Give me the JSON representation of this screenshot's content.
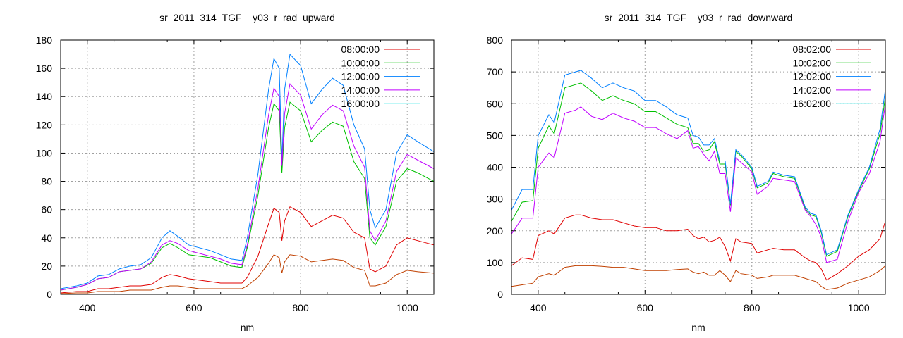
{
  "chart_data": [
    {
      "type": "line",
      "title": "sr_2011_314_TGF__y03_r_rad_upward",
      "xlabel": "nm",
      "ylabel": "",
      "xlim": [
        350,
        1050
      ],
      "ylim": [
        0,
        180
      ],
      "xticks": [
        400,
        600,
        800,
        1000
      ],
      "yticks": [
        0,
        20,
        40,
        60,
        80,
        100,
        120,
        140,
        160,
        180
      ],
      "grid": true,
      "legend_position": "top-right",
      "x": [
        350,
        380,
        400,
        420,
        440,
        460,
        480,
        500,
        520,
        540,
        555,
        570,
        590,
        610,
        630,
        650,
        670,
        690,
        700,
        720,
        740,
        750,
        760,
        765,
        770,
        780,
        800,
        820,
        840,
        860,
        880,
        900,
        920,
        930,
        940,
        960,
        980,
        1000,
        1020,
        1050
      ],
      "series": [
        {
          "name": "08:00:00",
          "color": "#e00000",
          "line_color": "#e00000",
          "values": [
            1,
            2,
            2,
            4,
            4,
            5,
            6,
            6,
            7,
            12,
            14,
            13,
            11,
            10,
            9,
            8,
            8,
            8,
            12,
            27,
            50,
            61,
            58,
            38,
            52,
            62,
            58,
            48,
            52,
            56,
            54,
            44,
            40,
            18,
            16,
            20,
            35,
            40,
            38,
            35
          ]
        },
        {
          "name": "10:00:00",
          "color": "#00c000",
          "line_color": "#00c000",
          "values": [
            3,
            5,
            7,
            11,
            12,
            16,
            17,
            18,
            22,
            33,
            36,
            33,
            28,
            27,
            26,
            23,
            20,
            19,
            33,
            70,
            118,
            135,
            130,
            86,
            118,
            136,
            130,
            108,
            116,
            122,
            119,
            94,
            82,
            40,
            35,
            48,
            80,
            89,
            86,
            80
          ]
        },
        {
          "name": "12:00:00",
          "color": "#0080ff",
          "line_color": "#0080ff",
          "values": [
            4,
            6,
            8,
            13,
            14,
            18,
            20,
            21,
            26,
            40,
            45,
            41,
            35,
            33,
            31,
            28,
            25,
            24,
            40,
            85,
            145,
            167,
            160,
            95,
            145,
            170,
            162,
            135,
            145,
            153,
            148,
            120,
            103,
            60,
            47,
            60,
            100,
            113,
            108,
            101
          ]
        },
        {
          "name": "14:00:00",
          "color": "#c000ff",
          "line_color": "#c000ff",
          "values": [
            3,
            5,
            7,
            11,
            12,
            16,
            17,
            18,
            23,
            35,
            38,
            36,
            31,
            29,
            27,
            25,
            22,
            21,
            35,
            75,
            127,
            146,
            140,
            91,
            128,
            149,
            141,
            117,
            127,
            134,
            130,
            105,
            90,
            45,
            38,
            52,
            87,
            99,
            95,
            89
          ]
        },
        {
          "name": "16:00:00",
          "color": "#00e0e0",
          "line_color": "#c04000",
          "values": [
            0.5,
            1,
            1,
            2,
            2,
            2,
            3,
            3,
            3,
            5,
            6,
            6,
            5,
            4,
            4,
            4,
            4,
            4,
            6,
            12,
            22,
            28,
            26,
            15,
            23,
            28,
            27,
            23,
            24,
            25,
            24,
            19,
            17,
            6,
            6,
            8,
            14,
            17,
            16,
            15
          ]
        }
      ]
    },
    {
      "type": "line",
      "title": "sr_2011_314_TGF__y03_r_rad_downward",
      "xlabel": "nm",
      "ylabel": "",
      "xlim": [
        350,
        1050
      ],
      "ylim": [
        0,
        800
      ],
      "xticks": [
        400,
        600,
        800,
        1000
      ],
      "yticks": [
        0,
        100,
        200,
        300,
        400,
        500,
        600,
        700,
        800
      ],
      "grid": true,
      "legend_position": "top-right",
      "x": [
        350,
        370,
        390,
        400,
        420,
        430,
        450,
        470,
        480,
        500,
        520,
        540,
        560,
        580,
        600,
        620,
        640,
        660,
        680,
        690,
        700,
        710,
        720,
        730,
        740,
        750,
        760,
        770,
        780,
        800,
        810,
        830,
        840,
        860,
        880,
        900,
        910,
        920,
        930,
        940,
        960,
        980,
        1000,
        1020,
        1040,
        1050
      ],
      "series": [
        {
          "name": "08:02:00",
          "color": "#e00000",
          "line_color": "#e00000",
          "values": [
            90,
            115,
            110,
            185,
            200,
            190,
            240,
            250,
            250,
            240,
            235,
            235,
            225,
            215,
            210,
            210,
            200,
            200,
            205,
            185,
            175,
            180,
            165,
            170,
            180,
            150,
            105,
            175,
            165,
            160,
            130,
            140,
            145,
            140,
            140,
            115,
            105,
            100,
            80,
            45,
            65,
            90,
            120,
            140,
            175,
            230
          ]
        },
        {
          "name": "10:02:00",
          "color": "#00c000",
          "line_color": "#00c000",
          "values": [
            230,
            290,
            295,
            460,
            530,
            505,
            650,
            660,
            665,
            640,
            610,
            625,
            610,
            600,
            575,
            575,
            555,
            535,
            525,
            475,
            475,
            450,
            455,
            480,
            410,
            410,
            280,
            450,
            435,
            395,
            335,
            350,
            380,
            370,
            365,
            270,
            250,
            245,
            195,
            120,
            135,
            245,
            325,
            395,
            505,
            620
          ]
        },
        {
          "name": "12:02:00",
          "color": "#0080ff",
          "line_color": "#0080ff",
          "values": [
            265,
            330,
            330,
            500,
            565,
            540,
            690,
            700,
            705,
            680,
            650,
            665,
            650,
            640,
            610,
            610,
            590,
            565,
            555,
            500,
            495,
            470,
            470,
            490,
            420,
            420,
            285,
            455,
            440,
            400,
            340,
            355,
            385,
            375,
            370,
            275,
            255,
            250,
            200,
            125,
            140,
            250,
            330,
            400,
            520,
            645
          ]
        },
        {
          "name": "14:02:00",
          "color": "#c000ff",
          "line_color": "#c000ff",
          "values": [
            190,
            240,
            240,
            400,
            445,
            430,
            570,
            580,
            590,
            560,
            550,
            570,
            555,
            545,
            525,
            525,
            505,
            490,
            515,
            460,
            465,
            440,
            420,
            450,
            380,
            380,
            260,
            430,
            415,
            385,
            315,
            340,
            365,
            360,
            355,
            265,
            245,
            220,
            180,
            100,
            110,
            230,
            320,
            380,
            480,
            600
          ]
        },
        {
          "name": "16:02:00",
          "color": "#00e0e0",
          "line_color": "#c04000",
          "values": [
            25,
            30,
            35,
            55,
            65,
            60,
            85,
            90,
            90,
            90,
            88,
            85,
            85,
            80,
            75,
            75,
            75,
            78,
            80,
            70,
            65,
            70,
            60,
            60,
            75,
            60,
            40,
            75,
            65,
            60,
            50,
            55,
            60,
            60,
            60,
            50,
            45,
            40,
            25,
            15,
            20,
            35,
            45,
            55,
            75,
            90
          ]
        }
      ]
    }
  ]
}
